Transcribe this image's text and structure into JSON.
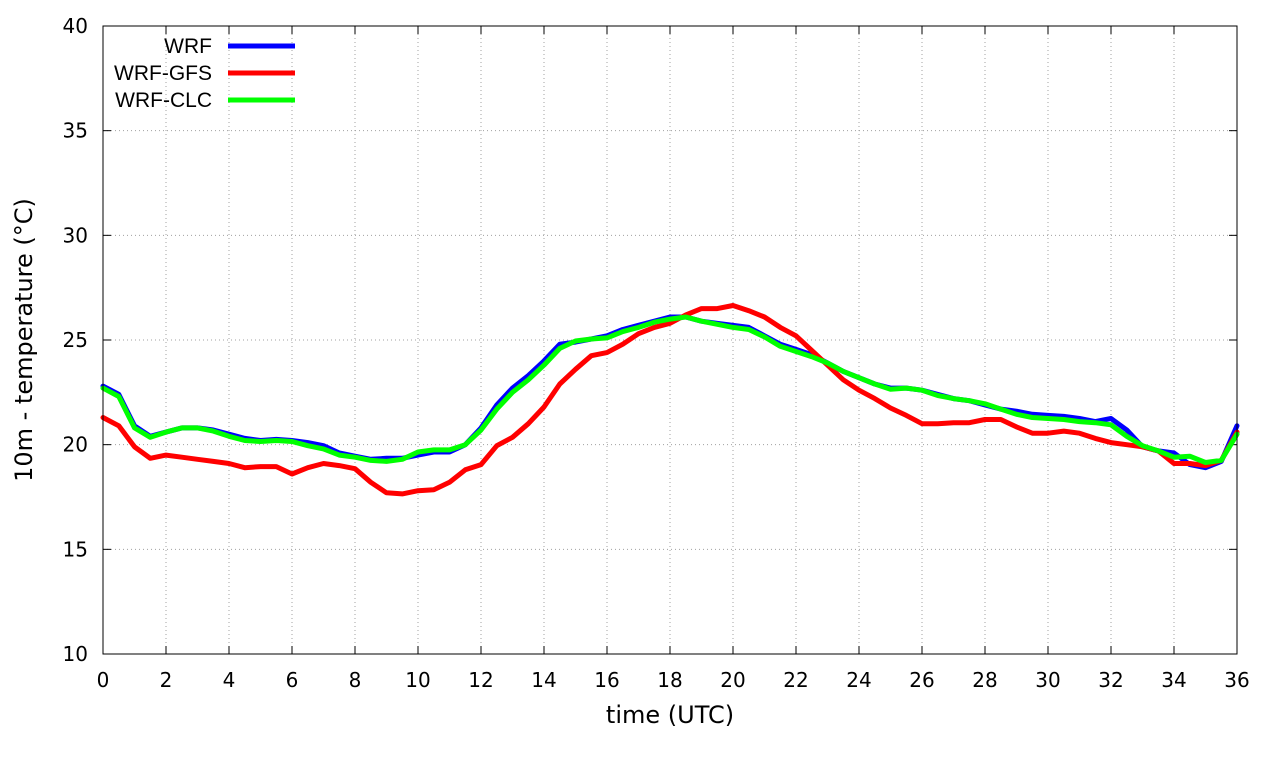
{
  "chart_data": {
    "type": "line",
    "xlabel": "time (UTC)",
    "ylabel": "10m - temperature (°C)",
    "xlim": [
      0,
      36
    ],
    "ylim": [
      10,
      40
    ],
    "x_ticks": [
      0,
      2,
      4,
      6,
      8,
      10,
      12,
      14,
      16,
      18,
      20,
      22,
      24,
      26,
      28,
      30,
      32,
      34,
      36
    ],
    "y_ticks": [
      10,
      15,
      20,
      25,
      30,
      35,
      40
    ],
    "grid": true,
    "legend_position": "top-left",
    "x": [
      0,
      0.5,
      1,
      1.5,
      2,
      2.5,
      3,
      3.5,
      4,
      4.5,
      5,
      5.5,
      6,
      6.5,
      7,
      7.5,
      8,
      8.5,
      9,
      9.5,
      10,
      10.5,
      11,
      11.5,
      12,
      12.5,
      13,
      13.5,
      14,
      14.5,
      15,
      15.5,
      16,
      16.5,
      17,
      17.5,
      18,
      18.5,
      19,
      19.5,
      20,
      20.5,
      21,
      21.5,
      22,
      22.5,
      23,
      23.5,
      24,
      24.5,
      25,
      25.5,
      26,
      26.5,
      27,
      27.5,
      28,
      28.5,
      29,
      29.5,
      30,
      30.5,
      31,
      31.5,
      32,
      32.5,
      33,
      33.5,
      34,
      34.5,
      35,
      35.5,
      36
    ],
    "series": [
      {
        "name": "WRF",
        "color": "#0000ff",
        "values": [
          22.8,
          22.4,
          20.9,
          20.4,
          20.6,
          20.8,
          20.8,
          20.7,
          20.5,
          20.3,
          20.2,
          20.25,
          20.2,
          20.1,
          19.95,
          19.6,
          19.45,
          19.3,
          19.35,
          19.35,
          19.5,
          19.65,
          19.65,
          20.0,
          20.8,
          21.9,
          22.7,
          23.3,
          24.0,
          24.8,
          24.9,
          25.05,
          25.2,
          25.5,
          25.7,
          25.9,
          26.1,
          26.1,
          25.9,
          25.8,
          25.7,
          25.6,
          25.2,
          24.8,
          24.55,
          24.3,
          23.9,
          23.5,
          23.2,
          22.9,
          22.7,
          22.7,
          22.6,
          22.4,
          22.2,
          22.1,
          21.9,
          21.7,
          21.6,
          21.45,
          21.4,
          21.35,
          21.25,
          21.1,
          21.25,
          20.7,
          19.9,
          19.7,
          19.6,
          19.05,
          18.9,
          19.2,
          20.9
        ]
      },
      {
        "name": "WRF-GFS",
        "color": "#ff0000",
        "values": [
          21.3,
          20.9,
          19.9,
          19.35,
          19.5,
          19.4,
          19.3,
          19.2,
          19.1,
          18.9,
          18.95,
          18.95,
          18.6,
          18.9,
          19.1,
          19.0,
          18.85,
          18.2,
          17.7,
          17.65,
          17.8,
          17.85,
          18.2,
          18.8,
          19.05,
          19.95,
          20.35,
          21.0,
          21.8,
          22.9,
          23.6,
          24.25,
          24.4,
          24.8,
          25.3,
          25.6,
          25.8,
          26.2,
          26.5,
          26.5,
          26.65,
          26.4,
          26.1,
          25.6,
          25.2,
          24.5,
          23.8,
          23.1,
          22.6,
          22.2,
          21.75,
          21.4,
          21.0,
          21.0,
          21.05,
          21.05,
          21.2,
          21.2,
          20.85,
          20.55,
          20.55,
          20.65,
          20.55,
          20.3,
          20.1,
          20.0,
          19.9,
          19.7,
          19.1,
          19.1,
          19.0,
          19.25,
          20.6
        ]
      },
      {
        "name": "WRF-CLC",
        "color": "#00ff00",
        "values": [
          22.7,
          22.3,
          20.8,
          20.35,
          20.6,
          20.8,
          20.8,
          20.65,
          20.4,
          20.2,
          20.15,
          20.2,
          20.15,
          19.95,
          19.8,
          19.5,
          19.4,
          19.25,
          19.2,
          19.3,
          19.65,
          19.75,
          19.75,
          20.0,
          20.7,
          21.7,
          22.5,
          23.1,
          23.8,
          24.6,
          24.95,
          25.05,
          25.1,
          25.4,
          25.6,
          25.85,
          26.0,
          26.1,
          25.9,
          25.75,
          25.6,
          25.5,
          25.15,
          24.7,
          24.45,
          24.2,
          23.9,
          23.5,
          23.2,
          22.9,
          22.65,
          22.7,
          22.6,
          22.35,
          22.2,
          22.1,
          21.95,
          21.7,
          21.45,
          21.3,
          21.25,
          21.2,
          21.1,
          21.05,
          20.95,
          20.4,
          19.95,
          19.7,
          19.4,
          19.45,
          19.15,
          19.25,
          20.5
        ]
      }
    ]
  }
}
